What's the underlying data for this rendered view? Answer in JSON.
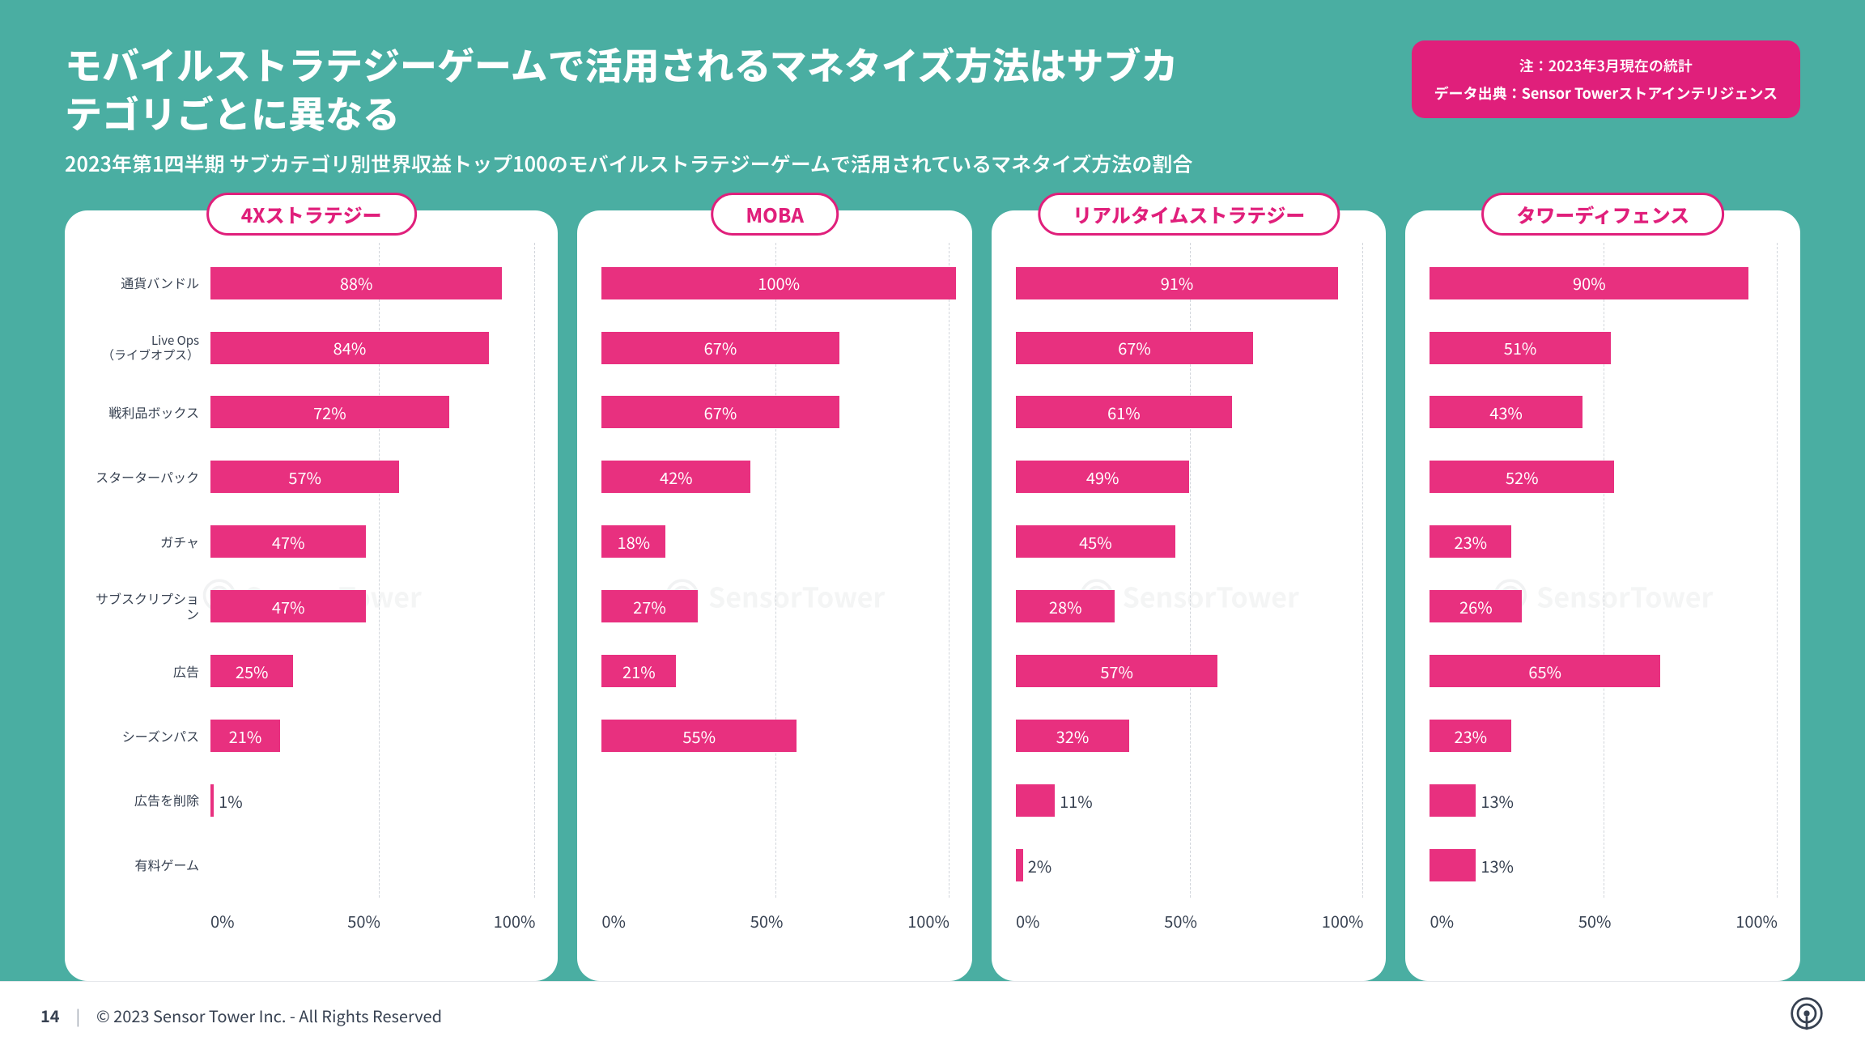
{
  "page": {
    "title": "モバイルストラテジーゲームで活用されるマネタイズ方法はサブカテゴリごとに異なる",
    "subtitle": "2023年第1四半期 サブカテゴリ別世界収益トップ100のモバイルストラテジーゲームで活用されているマネタイズ方法の割合",
    "note_line1": "注：2023年3月現在の統計",
    "note_line2": "データ出典：Sensor Towerストアインテリジェンス",
    "page_number": "14",
    "copyright": "© 2023 Sensor Tower Inc. - All Rights Reserved",
    "watermark": "SensorTower"
  },
  "style": {
    "bg_color": "#4aaea2",
    "panel_bg": "#ffffff",
    "accent": "#e01f7b",
    "bar_color": "#e8307f",
    "text_dark": "#374151",
    "grid_color": "#d1d5db",
    "title_fontsize": 46,
    "subtitle_fontsize": 25,
    "xlim": [
      0,
      100
    ],
    "xtick_labels": [
      "0%",
      "50%",
      "100%"
    ]
  },
  "categories": [
    {
      "label": "通貨バンドル",
      "twoline": false
    },
    {
      "label": "Live Ops\n（ライブオプス）",
      "twoline": true
    },
    {
      "label": "戦利品ボックス",
      "twoline": false
    },
    {
      "label": "スターターパック",
      "twoline": false
    },
    {
      "label": "ガチャ",
      "twoline": false
    },
    {
      "label": "サブスクリプション",
      "twoline": false
    },
    {
      "label": "広告",
      "twoline": false
    },
    {
      "label": "シーズンパス",
      "twoline": false
    },
    {
      "label": "広告を削除",
      "twoline": false
    },
    {
      "label": "有料ゲーム",
      "twoline": false
    }
  ],
  "charts": [
    {
      "title": "4Xストラテジー",
      "values": [
        88,
        84,
        72,
        57,
        47,
        47,
        25,
        21,
        1,
        null
      ]
    },
    {
      "title": "MOBA",
      "values": [
        100,
        67,
        67,
        42,
        18,
        27,
        21,
        55,
        null,
        null
      ]
    },
    {
      "title": "リアルタイムストラテジー",
      "values": [
        91,
        67,
        61,
        49,
        45,
        28,
        57,
        32,
        11,
        2
      ]
    },
    {
      "title": "タワーディフェンス",
      "values": [
        90,
        51,
        43,
        52,
        23,
        26,
        65,
        23,
        13,
        13
      ]
    }
  ]
}
